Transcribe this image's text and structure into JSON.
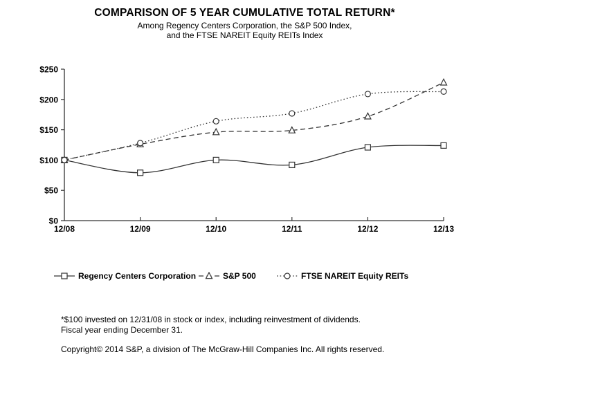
{
  "chart_data": {
    "type": "line",
    "title": "COMPARISON OF 5 YEAR CUMULATIVE TOTAL RETURN*",
    "subtitle_line1": "Among Regency Centers Corporation, the S&P 500 Index,",
    "subtitle_line2": "and the FTSE NAREIT Equity REITs Index",
    "categories": [
      "12/08",
      "12/09",
      "12/10",
      "12/11",
      "12/12",
      "12/13"
    ],
    "ylim": [
      0,
      250
    ],
    "yticks": [
      0,
      50,
      100,
      150,
      200,
      250
    ],
    "ytick_labels": [
      "$0",
      "$50",
      "$100",
      "$150",
      "$200",
      "$250"
    ],
    "xlabel": "",
    "ylabel": "",
    "grid": false,
    "legend_position": "bottom",
    "series": [
      {
        "name": "Regency Centers Corporation",
        "marker": "square",
        "line_style": "solid",
        "values": [
          100,
          79,
          100,
          92,
          121,
          124
        ]
      },
      {
        "name": "S&P 500",
        "marker": "triangle",
        "line_style": "dashed",
        "values": [
          100,
          126,
          146,
          149,
          172,
          228
        ]
      },
      {
        "name": "FTSE NAREIT Equity REITs",
        "marker": "circle",
        "line_style": "dotted",
        "values": [
          100,
          128,
          164,
          177,
          209,
          213
        ]
      }
    ],
    "colors": {
      "line": "#333333",
      "axis": "#333333",
      "text": "#000000",
      "marker_fill": "#ffffff"
    }
  },
  "footnotes": {
    "line1": "*$100 invested on 12/31/08 in stock or index, including reinvestment of dividends.",
    "line2": "Fiscal year ending December 31.",
    "copyright": "Copyright© 2014 S&P, a division of The McGraw-Hill Companies Inc. All rights reserved."
  }
}
